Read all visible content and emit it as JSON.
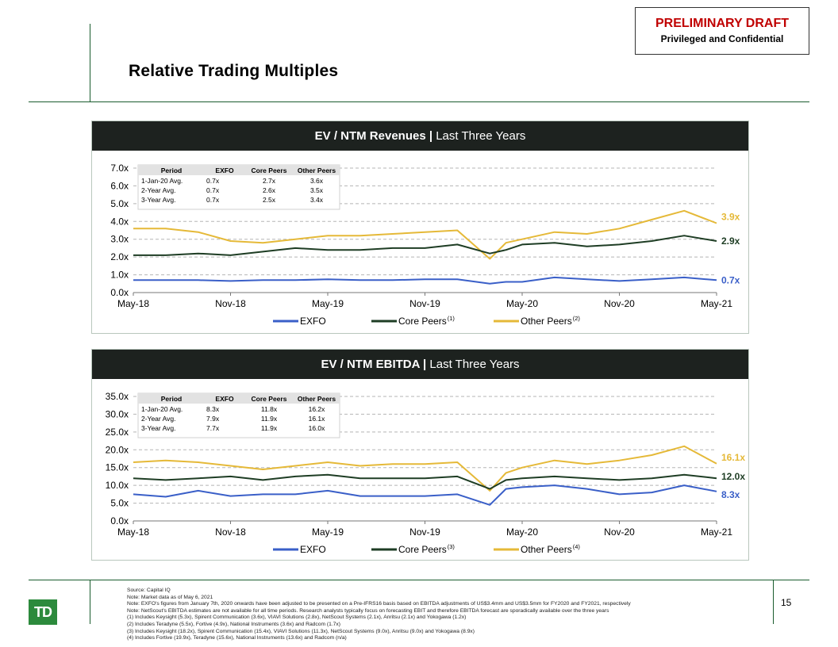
{
  "header": {
    "title": "Relative Trading Multiples",
    "draft_label": "PRELIMINARY DRAFT",
    "confidential_label": "Privileged and Confidential"
  },
  "colors": {
    "exfo": "#3a5fc8",
    "core": "#1e3d24",
    "other": "#e5b938",
    "panel_header": "#1d221f",
    "brand_green": "#2c8a3c"
  },
  "chart_data": [
    {
      "type": "line",
      "title_bold": "EV / NTM Revenues |",
      "title_rest": " Last Three Years",
      "ylim": [
        0,
        7
      ],
      "y_ticks": [
        "0.0x",
        "1.0x",
        "2.0x",
        "3.0x",
        "4.0x",
        "5.0x",
        "6.0x",
        "7.0x"
      ],
      "x_ticks": [
        "May-18",
        "Nov-18",
        "May-19",
        "Nov-19",
        "May-20",
        "Nov-20",
        "May-21"
      ],
      "grid": "horizontal dashed",
      "legend_position": "bottom",
      "x": [
        "May-18",
        "Jul-18",
        "Sep-18",
        "Nov-18",
        "Jan-19",
        "Mar-19",
        "May-19",
        "Jul-19",
        "Sep-19",
        "Nov-19",
        "Jan-20",
        "Mar-20",
        "Apr-20",
        "May-20",
        "Jul-20",
        "Sep-20",
        "Nov-20",
        "Jan-21",
        "Mar-21",
        "May-21"
      ],
      "series": [
        {
          "name": "EXFO",
          "superscript": "",
          "end_label": "0.7x",
          "values": [
            0.7,
            0.7,
            0.7,
            0.65,
            0.7,
            0.7,
            0.75,
            0.7,
            0.7,
            0.75,
            0.75,
            0.5,
            0.6,
            0.6,
            0.85,
            0.75,
            0.65,
            0.75,
            0.85,
            0.7
          ]
        },
        {
          "name": "Core Peers",
          "superscript": "(1)",
          "end_label": "2.9x",
          "values": [
            2.1,
            2.1,
            2.2,
            2.1,
            2.3,
            2.5,
            2.4,
            2.4,
            2.5,
            2.5,
            2.7,
            2.2,
            2.4,
            2.7,
            2.8,
            2.6,
            2.7,
            2.9,
            3.2,
            2.9
          ]
        },
        {
          "name": "Other Peers",
          "superscript": "(2)",
          "end_label": "3.9x",
          "values": [
            3.6,
            3.6,
            3.4,
            2.9,
            2.8,
            3.0,
            3.2,
            3.2,
            3.3,
            3.4,
            3.5,
            1.9,
            2.8,
            3.0,
            3.4,
            3.3,
            3.6,
            4.1,
            4.6,
            3.9
          ]
        }
      ],
      "table": {
        "headers": [
          "Period",
          "EXFO",
          "Core Peers",
          "Other Peers"
        ],
        "rows": [
          [
            "1-Jan-20 Avg.",
            "0.7x",
            "2.7x",
            "3.6x"
          ],
          [
            "2-Year Avg.",
            "0.7x",
            "2.6x",
            "3.5x"
          ],
          [
            "3-Year Avg.",
            "0.7x",
            "2.5x",
            "3.4x"
          ]
        ]
      }
    },
    {
      "type": "line",
      "title_bold": "EV / NTM EBITDA |",
      "title_rest": " Last Three Years",
      "ylim": [
        0,
        35
      ],
      "y_ticks": [
        "0.0x",
        "5.0x",
        "10.0x",
        "15.0x",
        "20.0x",
        "25.0x",
        "30.0x",
        "35.0x"
      ],
      "x_ticks": [
        "May-18",
        "Nov-18",
        "May-19",
        "Nov-19",
        "May-20",
        "Nov-20",
        "May-21"
      ],
      "grid": "horizontal dashed",
      "legend_position": "bottom",
      "x": [
        "May-18",
        "Jul-18",
        "Sep-18",
        "Nov-18",
        "Jan-19",
        "Mar-19",
        "May-19",
        "Jul-19",
        "Sep-19",
        "Nov-19",
        "Jan-20",
        "Mar-20",
        "Apr-20",
        "May-20",
        "Jul-20",
        "Sep-20",
        "Nov-20",
        "Jan-21",
        "Mar-21",
        "May-21"
      ],
      "series": [
        {
          "name": "EXFO",
          "superscript": "",
          "end_label": "8.3x",
          "values": [
            7.5,
            6.8,
            8.5,
            7.0,
            7.5,
            7.5,
            8.5,
            7.0,
            7.0,
            7.0,
            7.5,
            4.5,
            9.0,
            9.5,
            10.0,
            9.0,
            7.5,
            8.0,
            10.0,
            8.3
          ]
        },
        {
          "name": "Core Peers",
          "superscript": "(3)",
          "end_label": "12.0x",
          "values": [
            12.0,
            11.5,
            12.0,
            12.5,
            11.5,
            12.5,
            13.0,
            12.0,
            12.0,
            12.0,
            12.5,
            9.0,
            11.5,
            12.0,
            12.5,
            12.0,
            11.5,
            12.0,
            13.0,
            12.0
          ]
        },
        {
          "name": "Other Peers",
          "superscript": "(4)",
          "end_label": "16.1x",
          "values": [
            16.5,
            17.0,
            16.5,
            15.5,
            14.5,
            15.5,
            16.5,
            15.5,
            16.0,
            16.0,
            16.5,
            8.5,
            13.5,
            15.0,
            17.0,
            16.0,
            17.0,
            18.5,
            21.0,
            16.1
          ]
        }
      ],
      "table": {
        "headers": [
          "Period",
          "EXFO",
          "Core Peers",
          "Other Peers"
        ],
        "rows": [
          [
            "1-Jan-20 Avg.",
            "8.3x",
            "11.8x",
            "16.2x"
          ],
          [
            "2-Year Avg.",
            "7.9x",
            "11.9x",
            "16.1x"
          ],
          [
            "3-Year Avg.",
            "7.7x",
            "11.9x",
            "16.0x"
          ]
        ]
      }
    }
  ],
  "footer": {
    "page_number": "15",
    "logo_text": "TD",
    "notes": [
      "Source: Capital IQ",
      "Note: Market data as of May 6, 2021",
      "Note: EXFO's figures from January 7th, 2020 onwards have been adjusted to be presented on a Pre-IFRS16 basis based on EBITDA adjustments of US$3.4mm and US$3.5mm for FY2020 and FY2021, respectively",
      "Note: NetScout's EBITDA estimates are not available for all time periods. Research analysts typically focus on forecasting EBIT and therefore EBITDA forecast are sporadically available over the three years",
      "(1)   Includes Keysight (5.3x), Spirent Communication (3.6x), VIAVI Solutions (2.8x), NetScout Systems (2.1x), Anritsu (2.1x) and Yokogawa (1.2x)",
      "(2)   Includes Teradyne (5.5x), Fortive (4.9x), National Instruments (3.6x) and Radcom (1.7x)",
      "(3)   Includes Keysight (18.2x), Spirent Communication (15.4x), VIAVI Solutions (11.3x), NetScout Systems (9.0x), Anritsu (9.0x) and Yokogawa (8.9x)",
      "(4)   Includes Fortive (19.9x), Teradyne (15.6x), National Instruments (13.6x) and Radcom (n/a)"
    ]
  }
}
